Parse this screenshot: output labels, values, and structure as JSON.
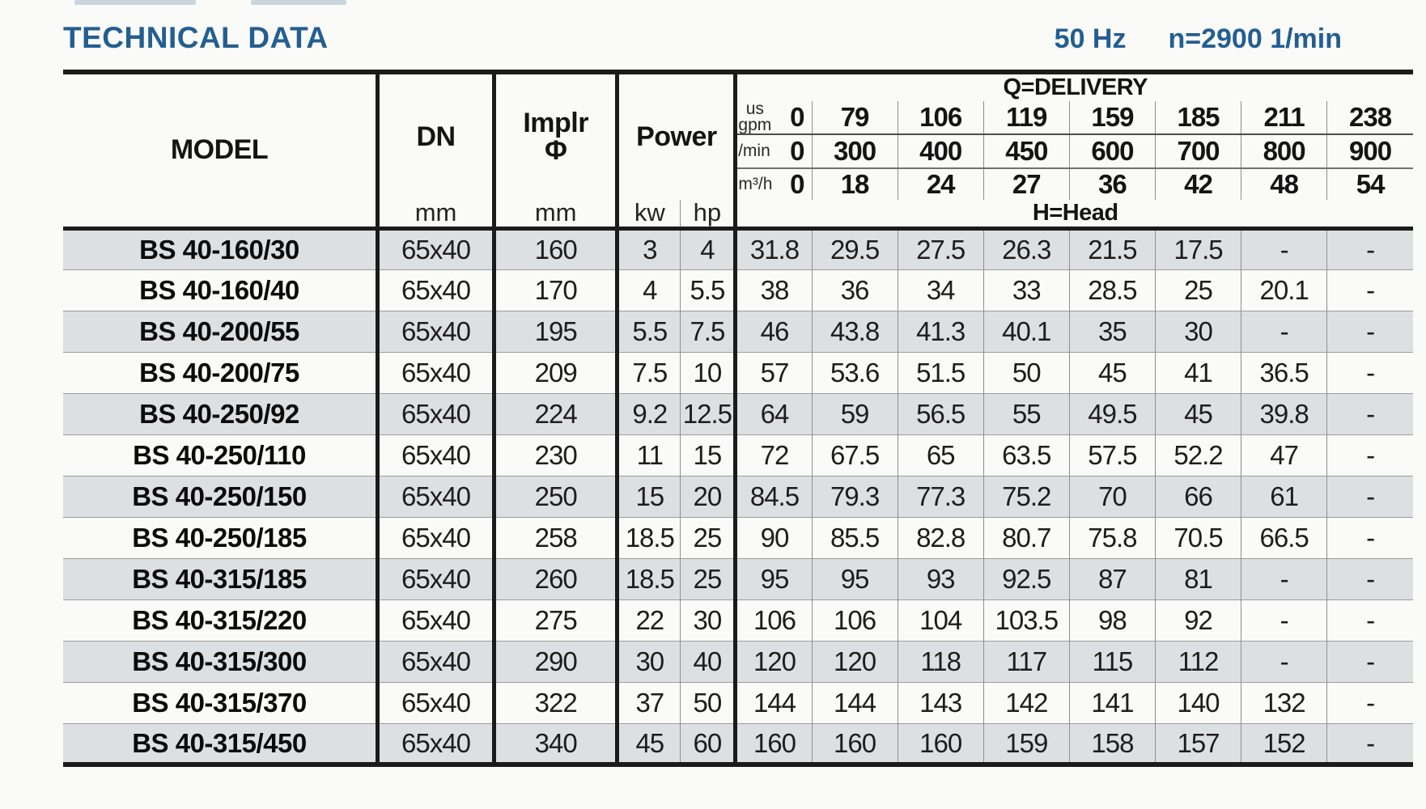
{
  "header": {
    "title": "TECHNICAL DATA",
    "frequency": "50 Hz",
    "speed": "n=2900 1/min"
  },
  "table": {
    "headers": {
      "model": "MODEL",
      "dn": "DN",
      "implr_line1": "Implr",
      "implr_phi": "Φ",
      "power": "Power",
      "mm": "mm",
      "kw": "kw",
      "hp": "hp",
      "q_delivery": "Q=DELIVERY",
      "h_head": "H=Head"
    },
    "flow_rows": [
      {
        "unit_top": "us",
        "unit": "gpm",
        "zero": "0",
        "values": [
          "79",
          "106",
          "119",
          "159",
          "185",
          "211",
          "238"
        ]
      },
      {
        "unit": "l/min",
        "zero": "0",
        "values": [
          "300",
          "400",
          "450",
          "600",
          "700",
          "800",
          "900"
        ]
      },
      {
        "unit": "m³/h",
        "zero": "0",
        "values": [
          "18",
          "24",
          "27",
          "36",
          "42",
          "48",
          "54"
        ]
      }
    ],
    "rows": [
      {
        "model": "BS 40-160/30",
        "dn": "65x40",
        "implr": "160",
        "kw": "3",
        "hp": "4",
        "head": [
          "31.8",
          "29.5",
          "27.5",
          "26.3",
          "21.5",
          "17.5",
          "-",
          "-"
        ]
      },
      {
        "model": "BS 40-160/40",
        "dn": "65x40",
        "implr": "170",
        "kw": "4",
        "hp": "5.5",
        "head": [
          "38",
          "36",
          "34",
          "33",
          "28.5",
          "25",
          "20.1",
          "-"
        ]
      },
      {
        "model": "BS 40-200/55",
        "dn": "65x40",
        "implr": "195",
        "kw": "5.5",
        "hp": "7.5",
        "head": [
          "46",
          "43.8",
          "41.3",
          "40.1",
          "35",
          "30",
          "-",
          "-"
        ]
      },
      {
        "model": "BS 40-200/75",
        "dn": "65x40",
        "implr": "209",
        "kw": "7.5",
        "hp": "10",
        "head": [
          "57",
          "53.6",
          "51.5",
          "50",
          "45",
          "41",
          "36.5",
          "-"
        ]
      },
      {
        "model": "BS 40-250/92",
        "dn": "65x40",
        "implr": "224",
        "kw": "9.2",
        "hp": "12.5",
        "head": [
          "64",
          "59",
          "56.5",
          "55",
          "49.5",
          "45",
          "39.8",
          "-"
        ]
      },
      {
        "model": "BS 40-250/110",
        "dn": "65x40",
        "implr": "230",
        "kw": "11",
        "hp": "15",
        "head": [
          "72",
          "67.5",
          "65",
          "63.5",
          "57.5",
          "52.2",
          "47",
          "-"
        ]
      },
      {
        "model": "BS 40-250/150",
        "dn": "65x40",
        "implr": "250",
        "kw": "15",
        "hp": "20",
        "head": [
          "84.5",
          "79.3",
          "77.3",
          "75.2",
          "70",
          "66",
          "61",
          "-"
        ]
      },
      {
        "model": "BS 40-250/185",
        "dn": "65x40",
        "implr": "258",
        "kw": "18.5",
        "hp": "25",
        "head": [
          "90",
          "85.5",
          "82.8",
          "80.7",
          "75.8",
          "70.5",
          "66.5",
          "-"
        ]
      },
      {
        "model": "BS 40-315/185",
        "dn": "65x40",
        "implr": "260",
        "kw": "18.5",
        "hp": "25",
        "head": [
          "95",
          "95",
          "93",
          "92.5",
          "87",
          "81",
          "-",
          "-"
        ]
      },
      {
        "model": "BS 40-315/220",
        "dn": "65x40",
        "implr": "275",
        "kw": "22",
        "hp": "30",
        "head": [
          "106",
          "106",
          "104",
          "103.5",
          "98",
          "92",
          "-",
          "-"
        ]
      },
      {
        "model": "BS 40-315/300",
        "dn": "65x40",
        "implr": "290",
        "kw": "30",
        "hp": "40",
        "head": [
          "120",
          "120",
          "118",
          "117",
          "115",
          "112",
          "-",
          "-"
        ]
      },
      {
        "model": "BS 40-315/370",
        "dn": "65x40",
        "implr": "322",
        "kw": "37",
        "hp": "50",
        "head": [
          "144",
          "144",
          "143",
          "142",
          "141",
          "140",
          "132",
          "-"
        ]
      },
      {
        "model": "BS 40-315/450",
        "dn": "65x40",
        "implr": "340",
        "kw": "45",
        "hp": "60",
        "head": [
          "160",
          "160",
          "160",
          "159",
          "158",
          "157",
          "152",
          "-"
        ]
      }
    ]
  }
}
